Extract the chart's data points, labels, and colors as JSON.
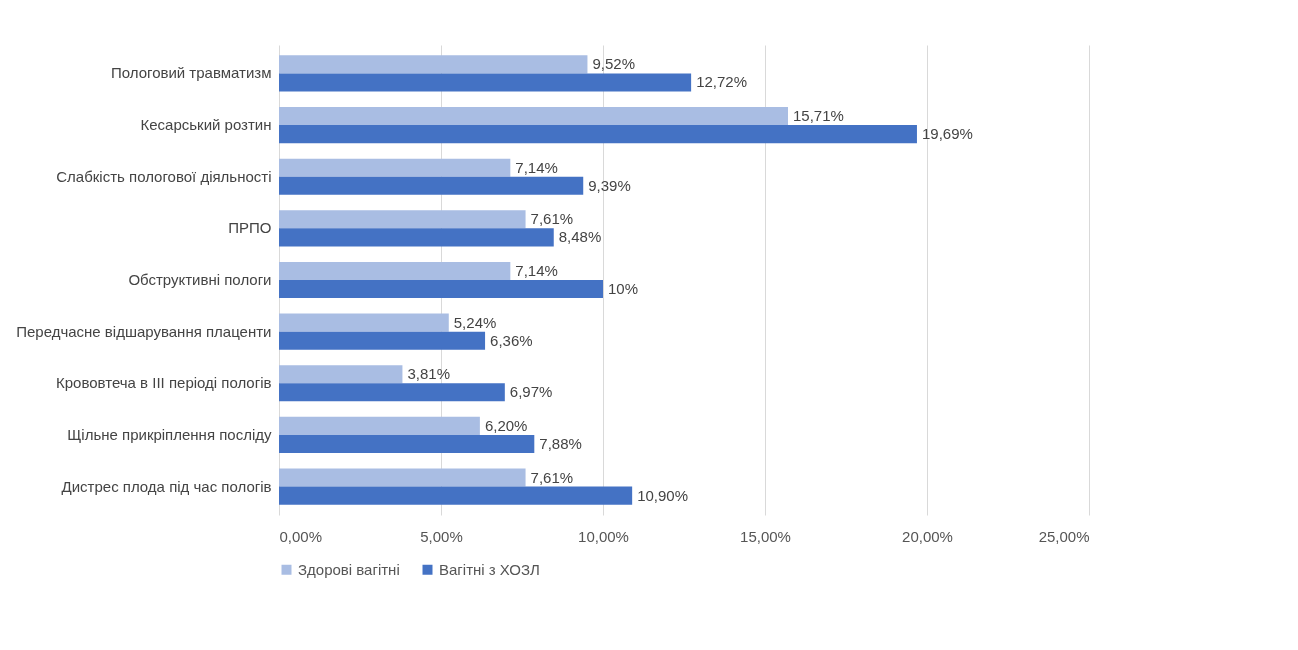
{
  "chart_data": {
    "type": "bar",
    "orientation": "horizontal",
    "categories": [
      "Пологовий травматизм",
      "Кесарський розтин",
      "Слабкість пологової діяльності",
      "ПРПО",
      "Обструктивні пологи",
      "Передчасне відшарування плаценти",
      "Крововтеча в ІІІ періоді пологів",
      "Щільне прикріплення посліду",
      "Дистрес плода під час пологів"
    ],
    "series": [
      {
        "name": "Здорові вагітні",
        "color": "#a9bde3",
        "values": [
          9.52,
          15.71,
          7.14,
          7.61,
          7.14,
          5.24,
          3.81,
          6.2,
          7.61
        ],
        "value_labels": [
          "9,52%",
          "15,71%",
          "7,14%",
          "7,61%",
          "7,14%",
          "5,24%",
          "3,81%",
          "6,20%",
          "7,61%"
        ]
      },
      {
        "name": "Вагітні з ХОЗЛ",
        "color": "#4472c4",
        "values": [
          12.72,
          19.69,
          9.39,
          8.48,
          10,
          6.36,
          6.97,
          7.88,
          10.9
        ],
        "value_labels": [
          "12,72%",
          "19,69%",
          "9,39%",
          "8,48%",
          "10%",
          "6,36%",
          "6,97%",
          "7,88%",
          "10,90%"
        ]
      }
    ],
    "xlim": [
      0,
      25
    ],
    "xticks": [
      {
        "value": 0,
        "label": "0,00%"
      },
      {
        "value": 5,
        "label": "5,00%"
      },
      {
        "value": 10,
        "label": "10,00%"
      },
      {
        "value": 15,
        "label": "15,00%"
      },
      {
        "value": 20,
        "label": "20,00%"
      },
      {
        "value": 25,
        "label": "25,00%"
      }
    ],
    "grid": "x",
    "legend": "bottom"
  }
}
